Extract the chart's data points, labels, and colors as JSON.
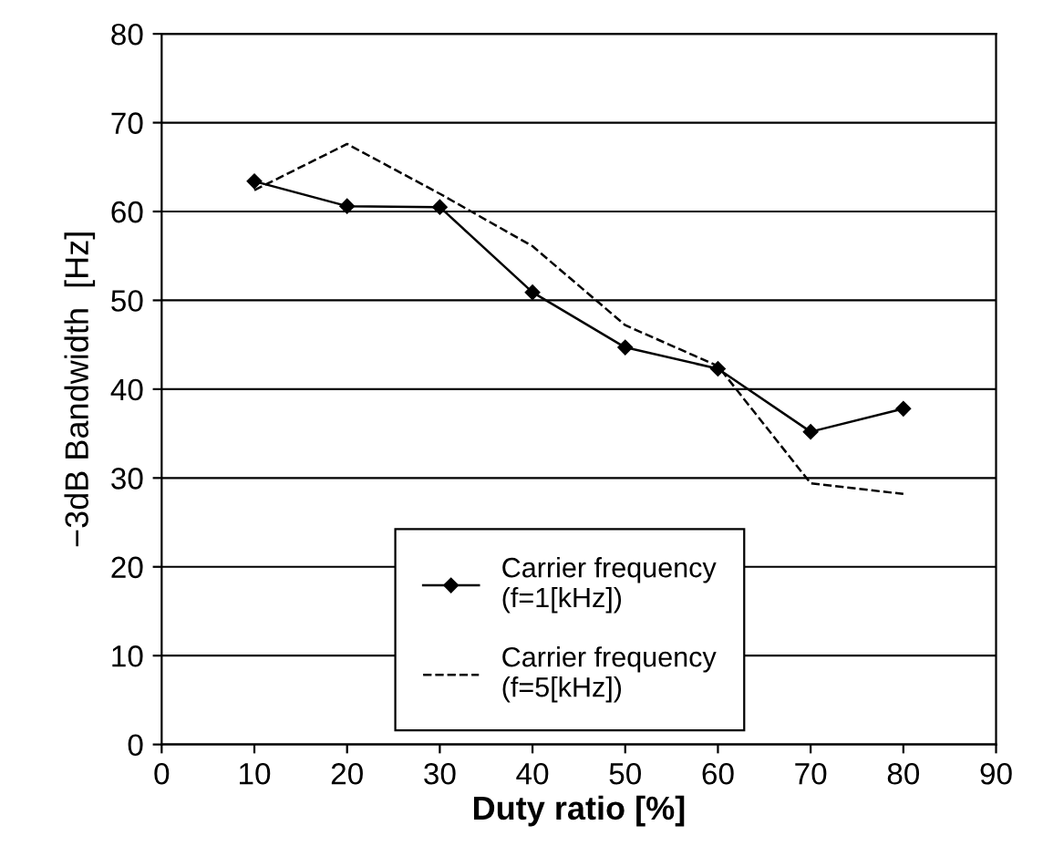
{
  "chart_data": {
    "type": "line",
    "xlabel": "Duty ratio [%]",
    "ylabel": "−3dB Bandwidth  [Hz]",
    "x": [
      10,
      20,
      30,
      40,
      50,
      60,
      70,
      80
    ],
    "series": [
      {
        "name": "Carrier frequency\n(f=1[kHz])",
        "color": "#000000",
        "marker": "diamond",
        "line_style": "solid",
        "values": [
          63.4,
          60.6,
          60.5,
          50.9,
          44.7,
          42.3,
          35.2,
          37.8
        ]
      },
      {
        "name": "Carrier frequency\n(f=5[kHz])",
        "color": "#000000",
        "marker": "none",
        "line_style": "dashed",
        "values": [
          62.4,
          67.6,
          62.0,
          56.1,
          47.2,
          42.6,
          29.4,
          28.2
        ]
      }
    ],
    "xlim": [
      0,
      90
    ],
    "xticks": [
      0,
      10,
      20,
      30,
      40,
      50,
      60,
      70,
      80,
      90
    ],
    "ylim": [
      0,
      80
    ],
    "yticks": [
      0,
      10,
      20,
      30,
      40,
      50,
      60,
      70,
      80
    ],
    "grid": "y",
    "legend": "bottom"
  }
}
